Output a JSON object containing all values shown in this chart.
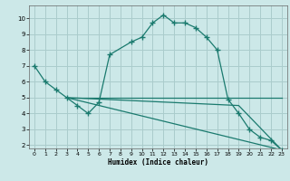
{
  "xlabel": "Humidex (Indice chaleur)",
  "bg_color": "#cce8e8",
  "grid_color": "#aacccc",
  "line_color": "#1a7a6e",
  "xlim": [
    -0.5,
    23.5
  ],
  "ylim": [
    1.8,
    10.8
  ],
  "yticks": [
    2,
    3,
    4,
    5,
    6,
    7,
    8,
    9,
    10
  ],
  "xticks": [
    0,
    1,
    2,
    3,
    4,
    5,
    6,
    7,
    8,
    9,
    10,
    11,
    12,
    13,
    14,
    15,
    16,
    17,
    18,
    19,
    20,
    21,
    22,
    23
  ],
  "line1_x": [
    0,
    1,
    2,
    3,
    4,
    5,
    6,
    7,
    9,
    10,
    11,
    12,
    13,
    14,
    15,
    16,
    17,
    18,
    19,
    20,
    21,
    22,
    23
  ],
  "line1_y": [
    7.0,
    6.0,
    5.5,
    5.0,
    4.5,
    4.0,
    4.7,
    7.7,
    8.5,
    8.8,
    9.7,
    10.2,
    9.7,
    9.7,
    9.4,
    8.8,
    8.0,
    4.9,
    4.0,
    3.0,
    2.5,
    2.3,
    1.7
  ],
  "line2_x": [
    3,
    23
  ],
  "line2_y": [
    5.0,
    5.0
  ],
  "line3_x": [
    3,
    23
  ],
  "line3_y": [
    5.0,
    1.7
  ],
  "line4_x": [
    3,
    19,
    23
  ],
  "line4_y": [
    5.0,
    4.5,
    1.7
  ]
}
